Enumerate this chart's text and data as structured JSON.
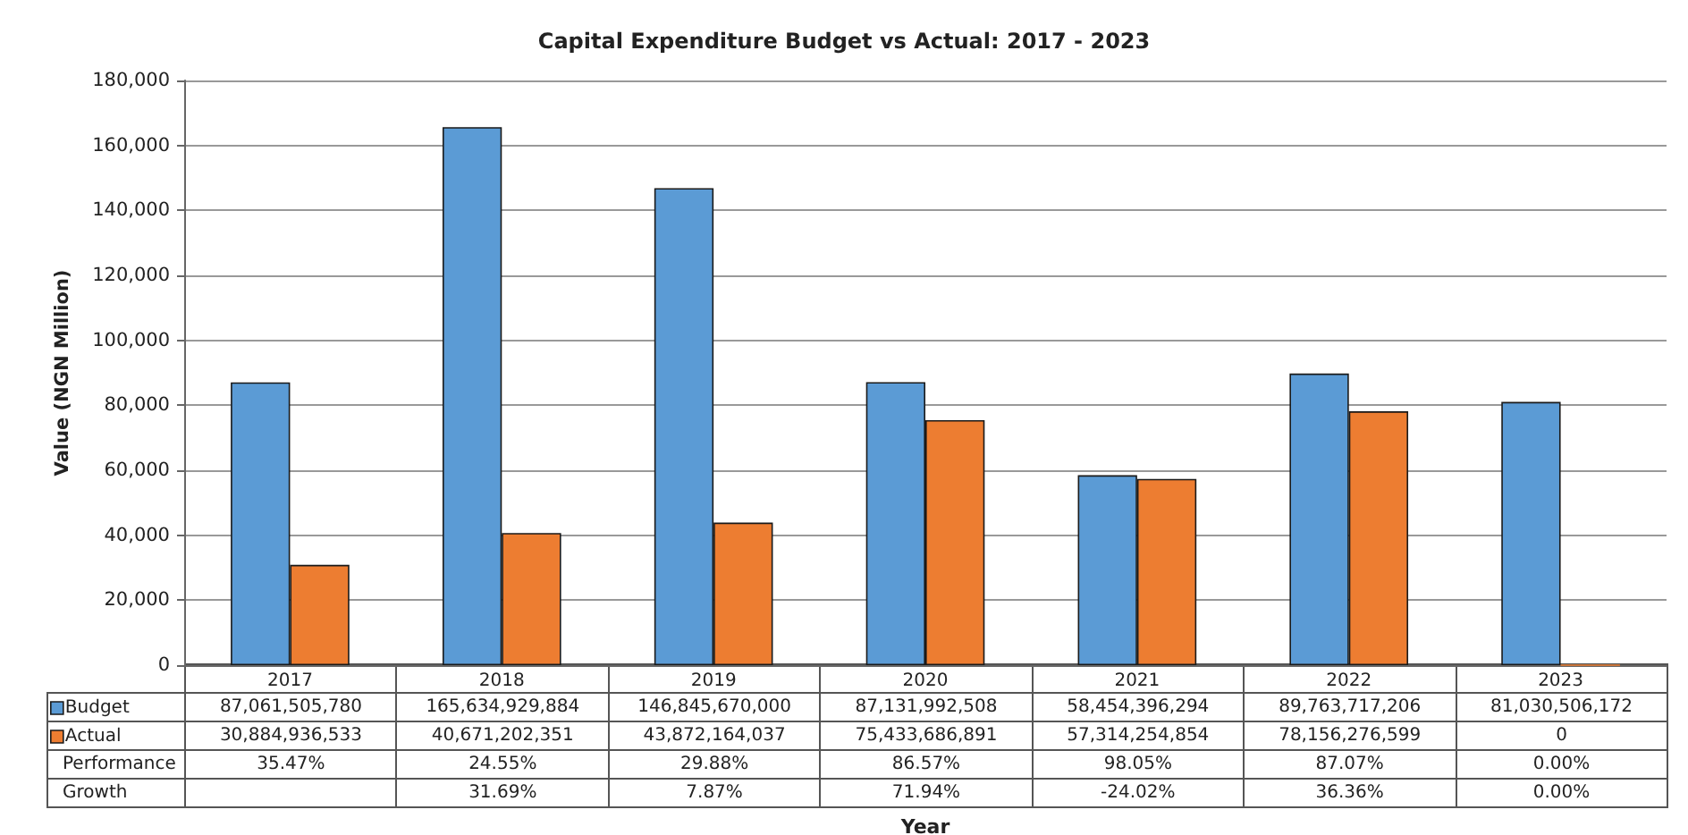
{
  "chart_data": {
    "type": "bar",
    "title": "Capital Expenditure Budget vs Actual: 2017 - 2023",
    "ylabel": "Value (NGN Million)",
    "categories": [
      "2017",
      "2018",
      "2019",
      "2020",
      "2021",
      "2022",
      "2023"
    ],
    "series": [
      {
        "name": "Budget",
        "color": "#5b9bd5",
        "values": [
          87062,
          165635,
          146846,
          87132,
          58454,
          89764,
          81031
        ]
      },
      {
        "name": "Actual",
        "color": "#ed7d31",
        "values": [
          30885,
          40671,
          43872,
          75434,
          57314,
          78156,
          0
        ]
      }
    ],
    "annotations": [
      null,
      "87,061,505,780",
      "165,634,929,884",
      "146,845,670,000",
      "87,131,992,508",
      "58,454,396,294",
      "89,763,717,206",
      "81,030,506,172",
      null,
      "30,884,936,533",
      "40,671,202,351",
      "43,872,164,037",
      "75,433,686,891",
      "57,314,254,854",
      "78,156,276,599",
      "0",
      "Performance",
      "35.47%",
      "24.55%",
      "29.88%",
      "86.57%",
      "98.05%",
      "87.07%",
      "0.00%",
      "Growth",
      null,
      "31.69%",
      "7.87%",
      "71.94%",
      "-24.02%",
      "36.36%",
      "0.00%",
      "Year"
    ],
    "ylim": [
      0,
      180000
    ],
    "yticks": [
      {
        "value": 0,
        "label": "0"
      },
      {
        "value": 20000,
        "label": "20,000"
      },
      {
        "value": 40000,
        "label": "40,000"
      },
      {
        "value": 60000,
        "label": "60,000"
      },
      {
        "value": 80000,
        "label": "80,000"
      },
      {
        "value": 100000,
        "label": "100,000"
      },
      {
        "value": 120000,
        "label": "120,000"
      },
      {
        "value": 140000,
        "label": "140,000"
      },
      {
        "value": 160000,
        "label": "160,000"
      },
      {
        "value": 180000,
        "label": "180,000"
      }
    ],
    "grid": "y",
    "legend": "bottom left"
  }
}
